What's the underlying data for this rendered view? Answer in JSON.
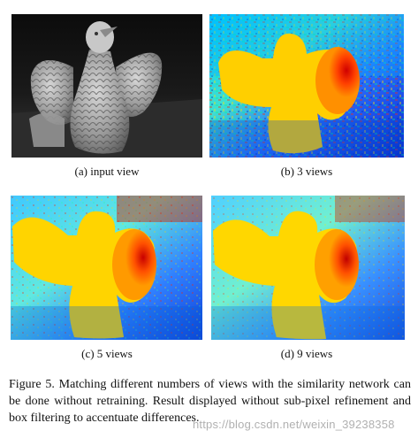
{
  "panels": [
    {
      "caption": "(a) input view"
    },
    {
      "caption": "(b) 3 views"
    },
    {
      "caption": "(c) 5 views"
    },
    {
      "caption": "(d) 9 views"
    }
  ],
  "figure_caption": "Figure 5. Matching different numbers of views with the similarity network can be done without retraining. Result displayed without sub-pixel refinement and box filtering to accentuate differences.",
  "watermark": "https://blog.csdn.net/weixin_39238358"
}
